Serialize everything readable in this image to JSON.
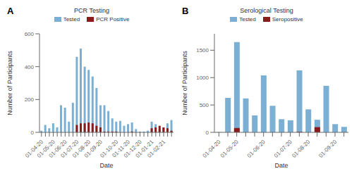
{
  "chart_data": [
    {
      "type": "bar",
      "title": "PCR Testing",
      "annotations": [
        "A"
      ],
      "xlabel": "Date",
      "ylabel": "Number of Participants",
      "categories": [
        "01-04-20",
        null,
        null,
        "01-05-20",
        null,
        null,
        "01-06-20",
        null,
        null,
        "01-07-20",
        null,
        null,
        "01-08-20",
        null,
        null,
        "01-09-20",
        null,
        null,
        null,
        "01-10-20",
        null,
        null,
        "01-11-20",
        null,
        null,
        "01-12-20",
        null,
        null,
        "01-01-21",
        null,
        null,
        "01-02-21",
        null,
        null
      ],
      "series": [
        {
          "name": "Tested",
          "color": "#7BAFD4",
          "values": [
            10,
            45,
            25,
            55,
            30,
            165,
            150,
            65,
            180,
            460,
            510,
            400,
            380,
            340,
            270,
            165,
            165,
            130,
            85,
            65,
            70,
            40,
            50,
            60,
            20,
            5,
            5,
            10,
            65,
            50,
            20,
            30,
            55,
            75
          ]
        },
        {
          "name": "PCR Positive",
          "color": "#8B1A1A",
          "values": [
            0,
            0,
            0,
            0,
            0,
            0,
            0,
            0,
            0,
            45,
            55,
            55,
            60,
            55,
            40,
            30,
            5,
            5,
            5,
            5,
            0,
            0,
            0,
            5,
            0,
            0,
            0,
            0,
            25,
            30,
            40,
            30,
            25,
            10
          ]
        }
      ],
      "ylim": [
        0,
        600
      ],
      "yticks": [
        0,
        200,
        400,
        600
      ],
      "grid": false,
      "legend": "top"
    },
    {
      "type": "bar",
      "title": "Serological Testing",
      "annotations": [
        "B"
      ],
      "xlabel": "Date",
      "ylabel": "Number of Participants",
      "categories": [
        "01-04-20",
        null,
        "01-05-20",
        null,
        null,
        "01-06-20",
        null,
        null,
        "01-07-20",
        null,
        "01-08-20",
        null,
        null,
        "01-09-20",
        null
      ],
      "series": [
        {
          "name": "Tested",
          "color": "#7BAFD4",
          "values": [
            5,
            630,
            1650,
            620,
            310,
            1040,
            485,
            240,
            220,
            1130,
            420,
            230,
            850,
            150,
            100
          ]
        },
        {
          "name": "Seropositive",
          "color": "#8B1A1A",
          "values": [
            0,
            0,
            80,
            0,
            0,
            0,
            0,
            0,
            0,
            10,
            0,
            95,
            0,
            0,
            0
          ]
        }
      ],
      "ylim": [
        0,
        1800
      ],
      "yticks": [
        0,
        500,
        1000,
        1500
      ],
      "grid": false,
      "legend": "top"
    }
  ]
}
